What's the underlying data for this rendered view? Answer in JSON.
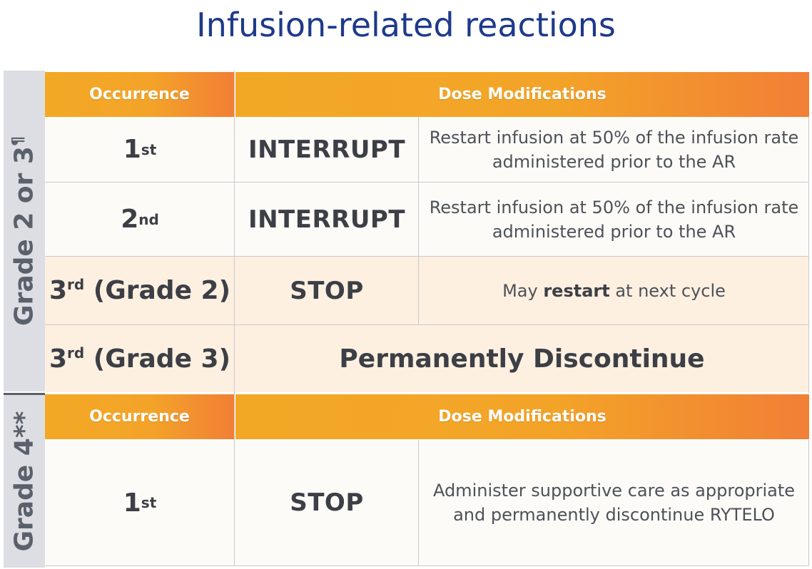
{
  "title": "Infusion-related reactions",
  "grade23": {
    "side_label": "Grade 2 or 3",
    "side_sup": "¶",
    "header_occurrence": "Occurrence",
    "header_dose": "Dose Modifications",
    "rows": [
      {
        "occ": "1",
        "occ_sup": "st",
        "occ_suffix": "",
        "action": "INTERRUPT",
        "desc_line1": "Restart infusion at 50% of the infusion rate",
        "desc_line2": "administered prior to the AR"
      },
      {
        "occ": "2",
        "occ_sup": "nd",
        "occ_suffix": "",
        "action": "INTERRUPT",
        "desc_line1": "Restart infusion at 50% of the infusion rate",
        "desc_line2": "administered prior to the AR"
      },
      {
        "occ": "3",
        "occ_sup": "rd",
        "occ_suffix": " (Grade 2)",
        "action": "STOP",
        "desc_pre": "May ",
        "desc_bold": "restart",
        "desc_post": " at next cycle"
      },
      {
        "occ": "3",
        "occ_sup": "rd",
        "occ_suffix": " (Grade 3)",
        "action_wide": "Permanently Discontinue"
      }
    ]
  },
  "grade4": {
    "side_label": "Grade 4",
    "side_sup": "**",
    "header_occurrence": "Occurrence",
    "header_dose": "Dose Modifications",
    "row": {
      "occ": "1",
      "occ_sup": "st",
      "action": "STOP",
      "desc_line1": "Administer supportive care as appropriate",
      "desc_line2": "and permanently discontinue RYTELO"
    }
  },
  "colors": {
    "title": "#1d3a8a",
    "header_start": "#f3a825",
    "header_end": "#f27f36",
    "side": "#dcdee3"
  }
}
